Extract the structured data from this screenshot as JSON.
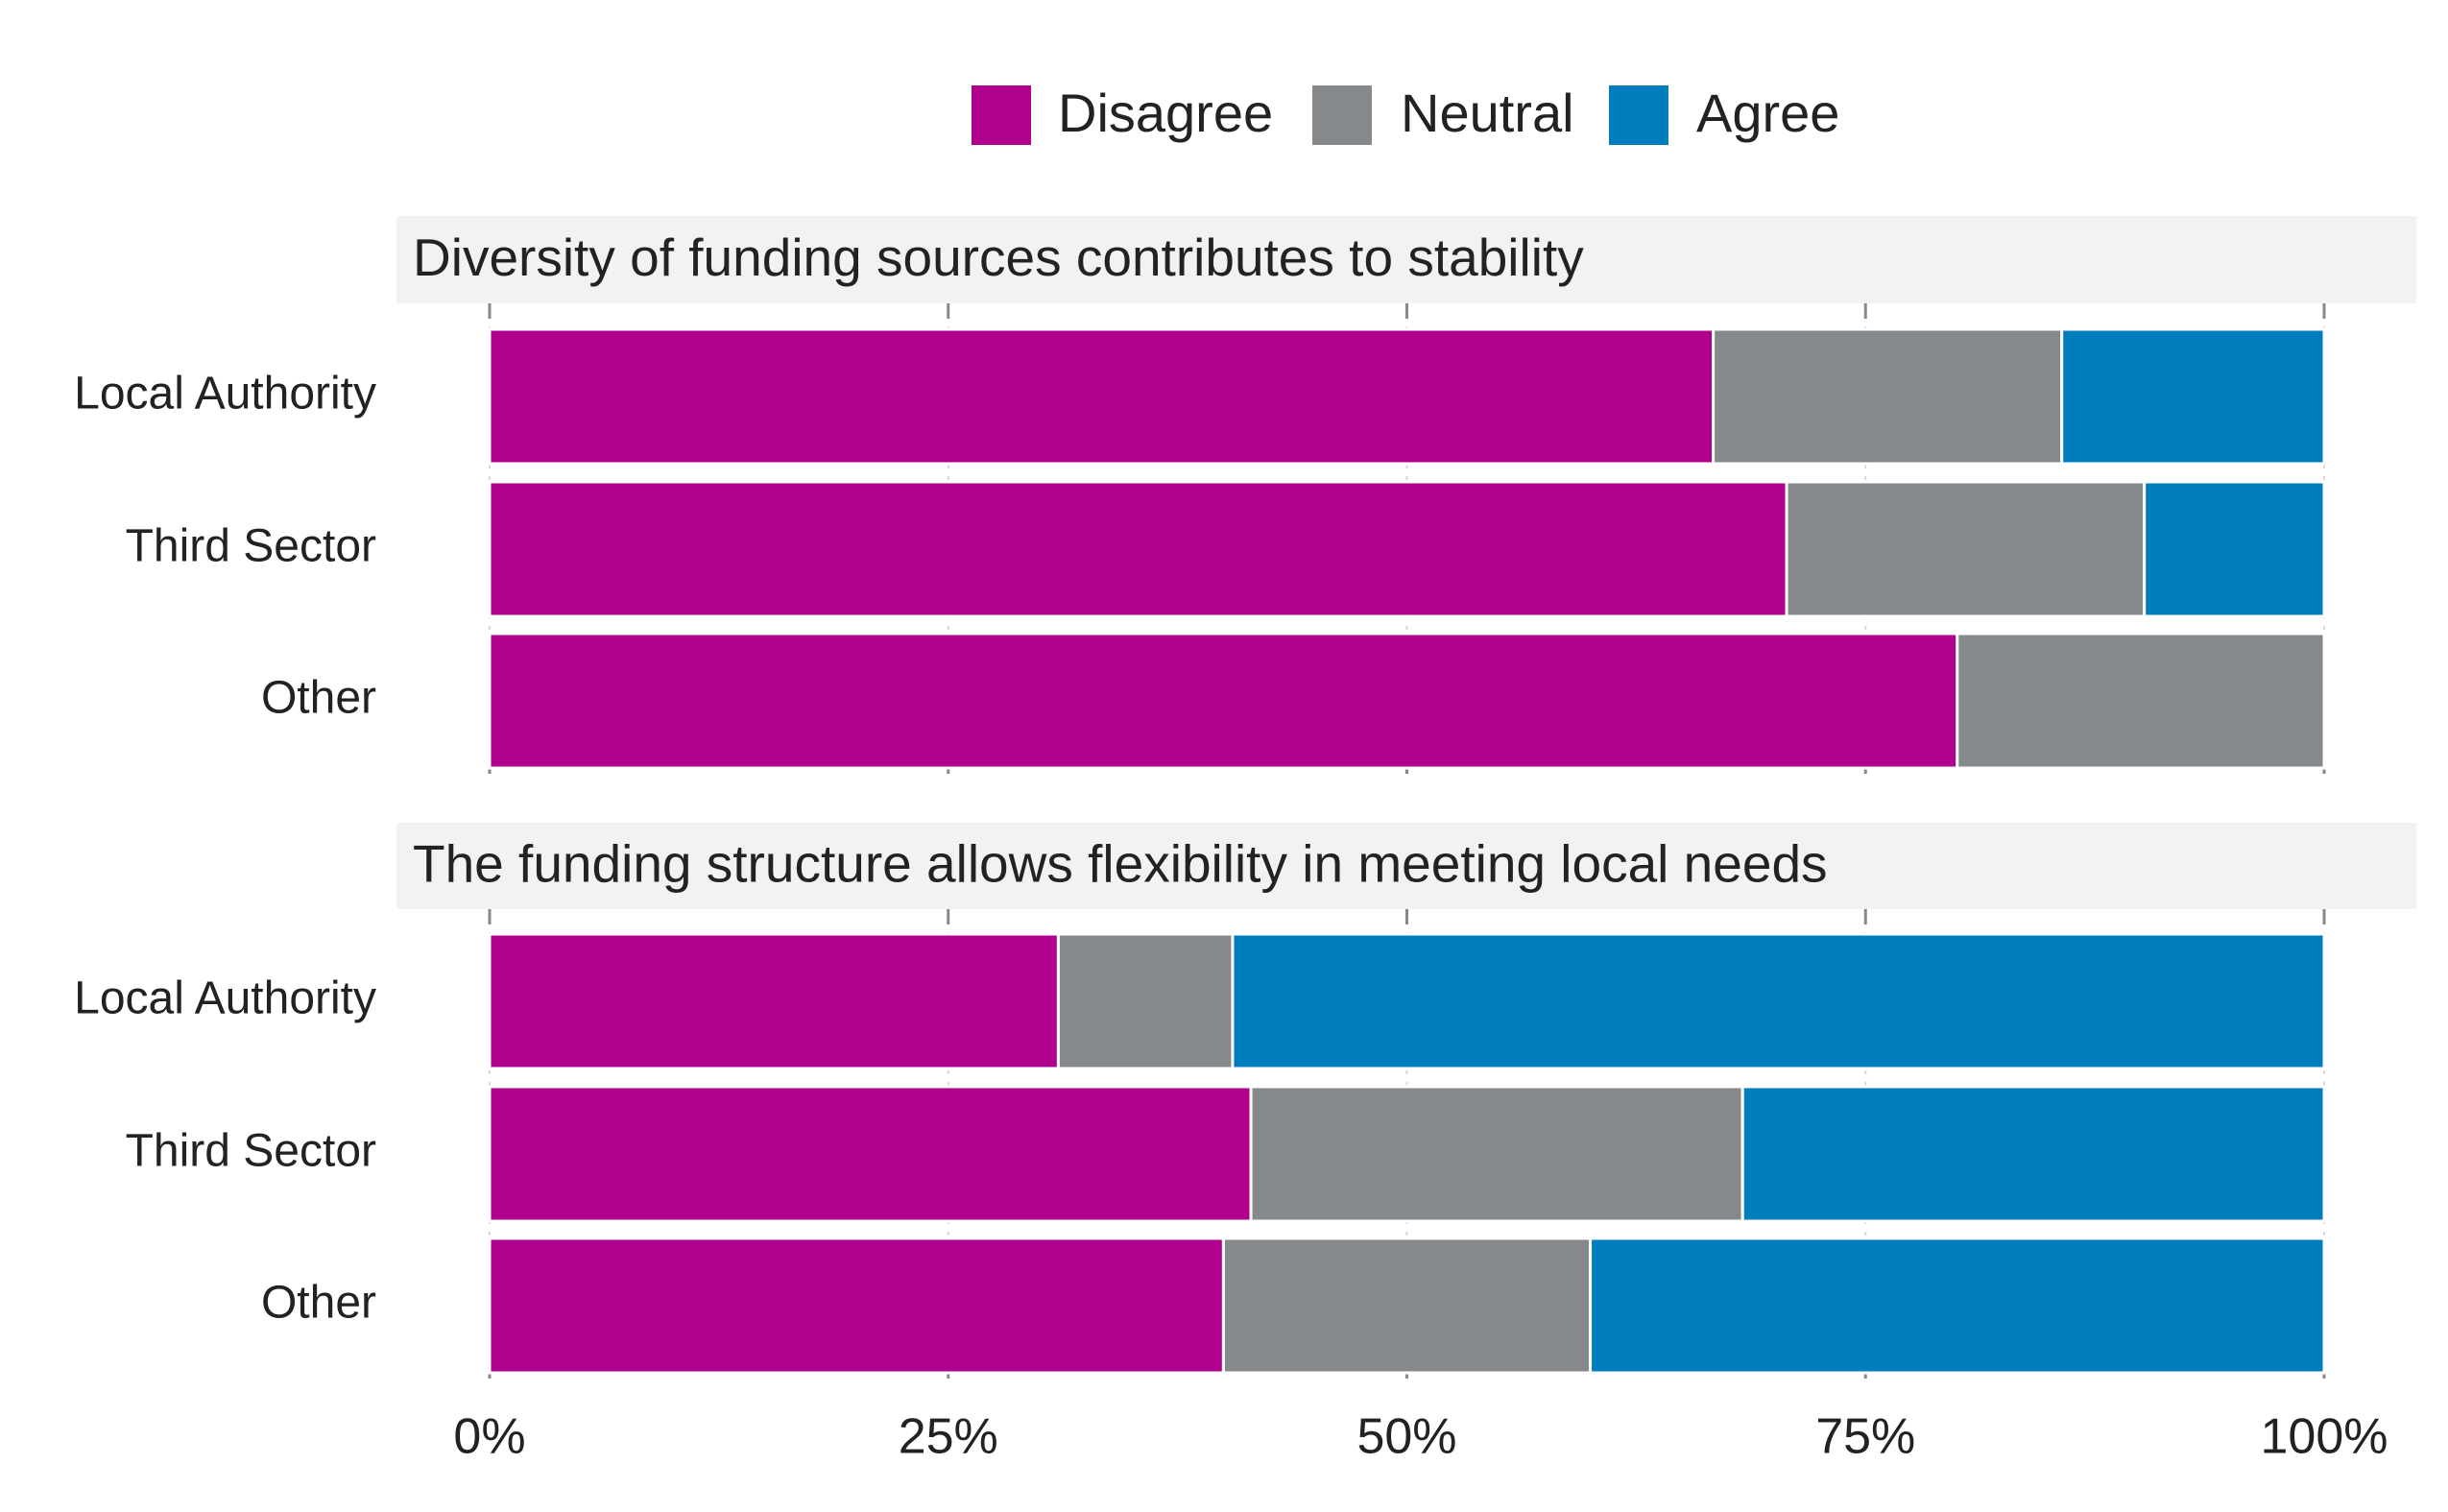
{
  "chart_data": [
    {
      "type": "bar",
      "orientation": "horizontal",
      "stacked": true,
      "title": "Diversity of funding sources contributes to stability",
      "categories": [
        "Local Authority",
        "Third Sector",
        "Other"
      ],
      "series": [
        {
          "name": "Disagree",
          "color": "#b0008d",
          "values": [
            66.7,
            70.7,
            80
          ]
        },
        {
          "name": "Neutral",
          "color": "#86898b",
          "values": [
            19,
            19.5,
            20
          ]
        },
        {
          "name": "Agree",
          "color": "#007dbc",
          "values": [
            14.3,
            9.8,
            0
          ]
        }
      ],
      "xlim": [
        0,
        100
      ],
      "xticks": [
        {
          "value": 0,
          "label": "0%"
        },
        {
          "value": 25,
          "label": "25%"
        },
        {
          "value": 50,
          "label": "50%"
        },
        {
          "value": 75,
          "label": "75%"
        },
        {
          "value": 100,
          "label": "100%"
        }
      ],
      "grid": true
    },
    {
      "type": "bar",
      "orientation": "horizontal",
      "stacked": true,
      "title": "The funding structure allows flexibility in meeting local needs",
      "categories": [
        "Local Authority",
        "Third Sector",
        "Other"
      ],
      "series": [
        {
          "name": "Disagree",
          "color": "#b0008d",
          "values": [
            31,
            41.5,
            40
          ]
        },
        {
          "name": "Neutral",
          "color": "#86898b",
          "values": [
            9.5,
            26.8,
            20
          ]
        },
        {
          "name": "Agree",
          "color": "#007dbc",
          "values": [
            59.5,
            31.7,
            40
          ]
        }
      ],
      "xlim": [
        0,
        100
      ],
      "xticks": [
        {
          "value": 0,
          "label": "0%"
        },
        {
          "value": 25,
          "label": "25%"
        },
        {
          "value": 50,
          "label": "50%"
        },
        {
          "value": 75,
          "label": "75%"
        },
        {
          "value": 100,
          "label": "100%"
        }
      ],
      "grid": true
    }
  ]
}
